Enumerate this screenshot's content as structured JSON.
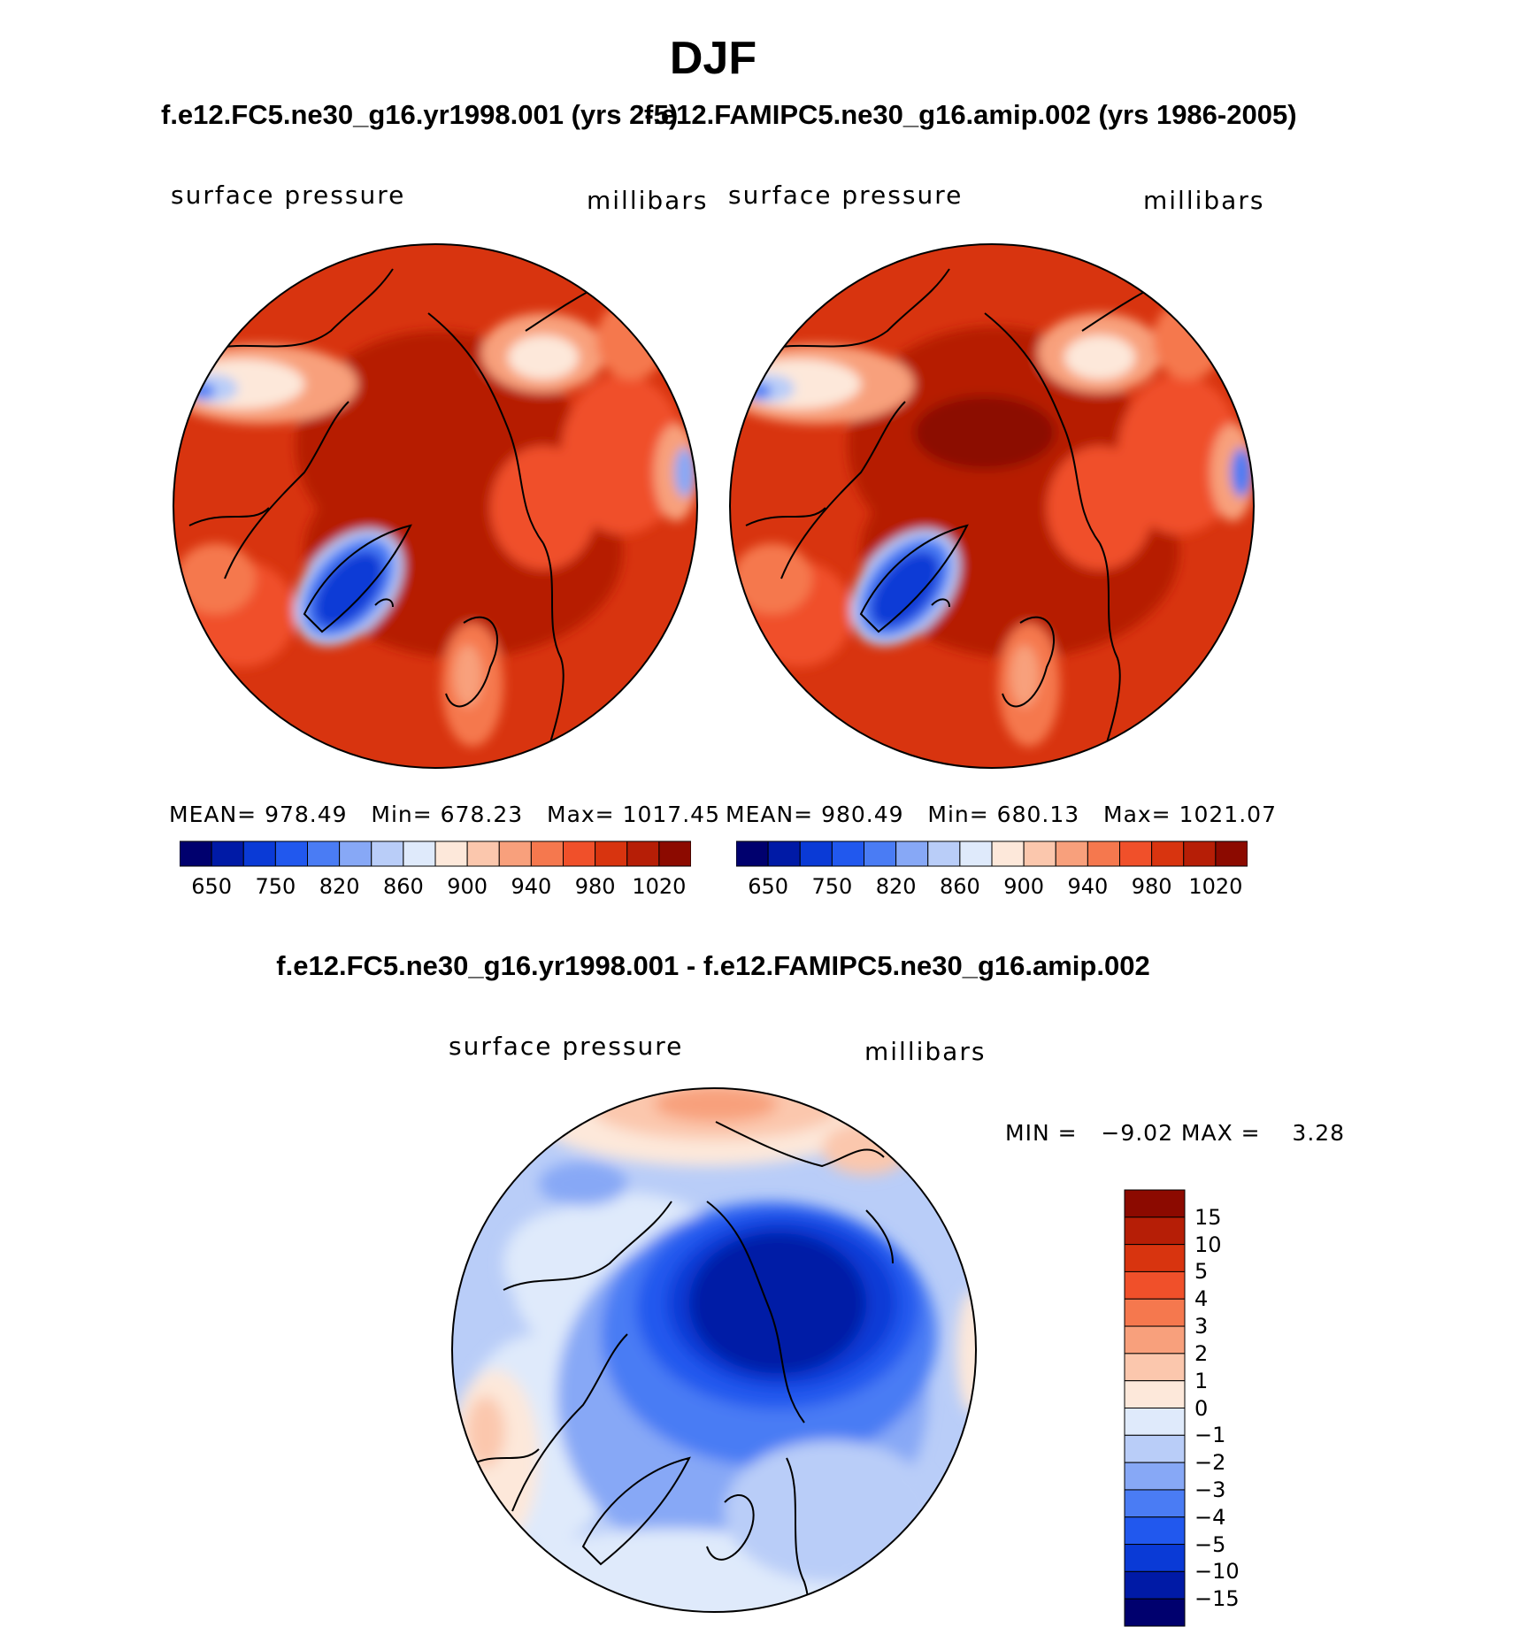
{
  "title": "DJF",
  "panels": [
    {
      "case_title": "f.e12.FC5.ne30_g16.yr1998.001 (yrs 2-5)",
      "variable_label": "surface pressure",
      "units_label": "millibars",
      "stats": {
        "mean_label": "MEAN=",
        "mean": "978.49",
        "min_label": "Min=",
        "min": "678.23",
        "max_label": "Max=",
        "max": "1017.45"
      },
      "colorbar_labels": [
        "650",
        "750",
        "820",
        "860",
        "900",
        "940",
        "980",
        "1020"
      ]
    },
    {
      "case_title": "f.e12.FAMIPC5.ne30_g16.amip.002 (yrs 1986-2005)",
      "variable_label": "surface pressure",
      "units_label": "millibars",
      "stats": {
        "mean_label": "MEAN=",
        "mean": "980.49",
        "min_label": "Min=",
        "min": "680.13",
        "max_label": "Max=",
        "max": "1021.07"
      },
      "colorbar_labels": [
        "650",
        "750",
        "820",
        "860",
        "900",
        "940",
        "980",
        "1020"
      ]
    }
  ],
  "difference": {
    "title": "f.e12.FC5.ne30_g16.yr1998.001 - f.e12.FAMIPC5.ne30_g16.amip.002",
    "variable_label": "surface pressure",
    "units_label": "millibars",
    "min_max": "MIN =   −9.02 MAX =    3.28",
    "colorbar_labels": [
      "15",
      "10",
      "5",
      "4",
      "3",
      "2",
      "1",
      "0",
      "−1",
      "−2",
      "−3",
      "−4",
      "−5",
      "−10",
      "−15"
    ]
  },
  "colors": {
    "abs_scale": [
      "#00006e",
      "#001aa6",
      "#0a3ad6",
      "#2158ee",
      "#4a7cf4",
      "#87a8f6",
      "#b9cdf8",
      "#dfeafb",
      "#fde8da",
      "#fbc7ad",
      "#f8a07c",
      "#f5784e",
      "#f0502a",
      "#d8340f",
      "#b61e06",
      "#8c0a00"
    ],
    "diff_scale": [
      "#8c0a00",
      "#b61e06",
      "#d8340f",
      "#f0502a",
      "#f5784e",
      "#f8a07c",
      "#fbc7ad",
      "#fde8da",
      "#dfeafb",
      "#b9cdf8",
      "#87a8f6",
      "#4a7cf4",
      "#2158ee",
      "#0a3ad6",
      "#001aa6",
      "#00006e"
    ]
  }
}
